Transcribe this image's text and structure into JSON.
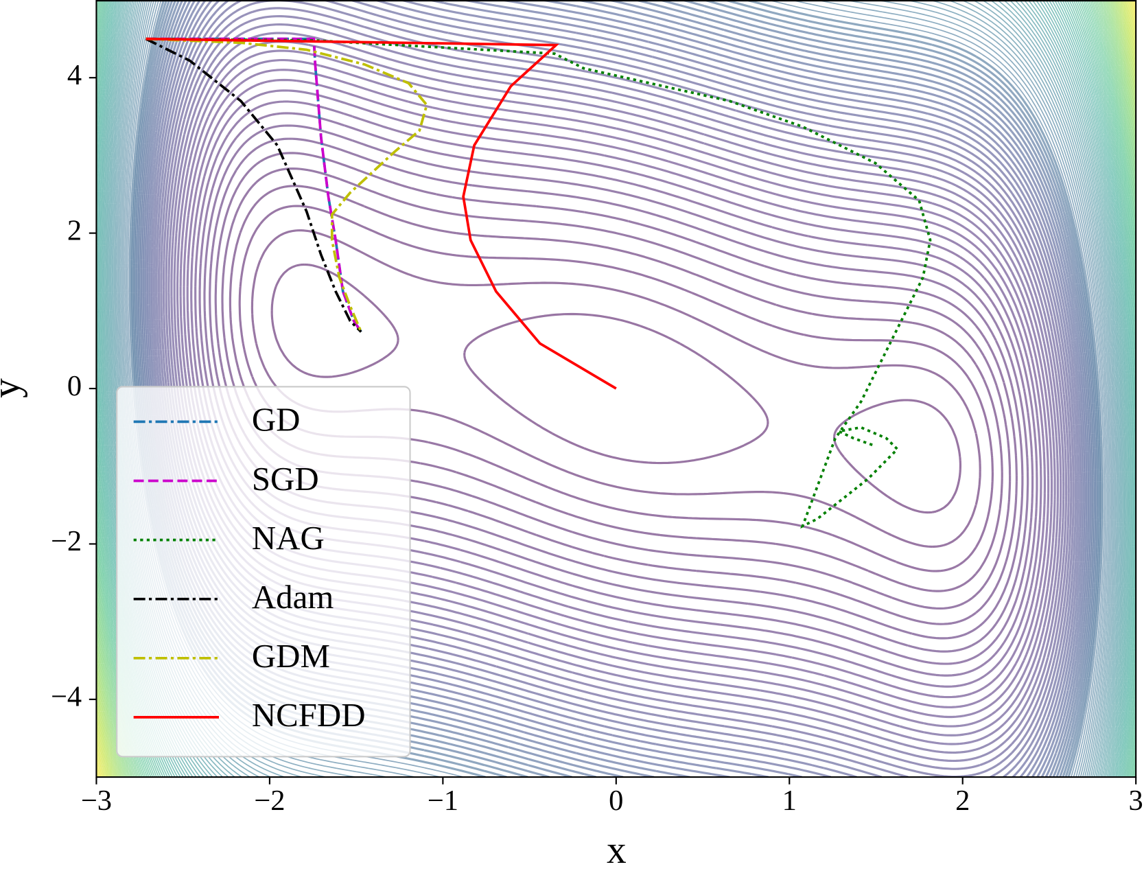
{
  "chart_data": {
    "type": "line",
    "xlabel": "x",
    "ylabel": "y",
    "xlim": [
      -3,
      3
    ],
    "ylim": [
      -5,
      5
    ],
    "xticks": [
      {
        "value": -3,
        "label": "−3"
      },
      {
        "value": -2,
        "label": "−2"
      },
      {
        "value": -1,
        "label": "−1"
      },
      0,
      1,
      2,
      3
    ],
    "yticks": [
      {
        "value": -4,
        "label": "−4"
      },
      {
        "value": -2,
        "label": "−2"
      },
      0,
      2,
      4
    ],
    "legend": "lower left",
    "series": [
      {
        "name": "GD",
        "color": "#1f77b4",
        "linestyle": "dashdot",
        "x": [
          -2.714,
          -1.745,
          -1.737,
          -1.703,
          -1.661,
          -1.619,
          -1.577,
          -1.514,
          -1.472
        ],
        "y": [
          4.5,
          4.5,
          4.17,
          3.23,
          2.47,
          1.91,
          1.25,
          0.87,
          0.73
        ]
      },
      {
        "name": "SGD",
        "color": "#cc00cc",
        "linestyle": "dashed",
        "x": [
          -2.714,
          -1.745,
          -1.737,
          -1.703,
          -1.661,
          -1.619,
          -1.577,
          -1.514,
          -1.472
        ],
        "y": [
          4.5,
          4.5,
          4.17,
          3.23,
          2.47,
          1.91,
          1.25,
          0.87,
          0.73
        ]
      },
      {
        "name": "NAG",
        "color": "#008000",
        "linestyle": "dotted",
        "x": [
          -2.714,
          -1.745,
          -0.356,
          -0.187,
          0.655,
          1.076,
          1.497,
          1.749,
          1.813,
          1.771,
          1.623,
          1.413,
          1.265,
          1.076,
          1.16,
          1.455,
          1.623,
          1.56,
          1.413,
          1.286,
          1.371,
          1.497
        ],
        "y": [
          4.5,
          4.48,
          4.31,
          4.12,
          3.7,
          3.37,
          2.9,
          2.42,
          1.91,
          1.43,
          0.77,
          -0.17,
          -0.64,
          -1.77,
          -1.68,
          -1.16,
          -0.78,
          -0.64,
          -0.5,
          -0.55,
          -0.64,
          -0.74
        ]
      },
      {
        "name": "Adam",
        "color": "#000000",
        "linestyle": "dashdot",
        "x": [
          -2.714,
          -2.461,
          -2.166,
          -1.956,
          -1.787,
          -1.703,
          -1.619,
          -1.535,
          -1.472
        ],
        "y": [
          4.5,
          4.22,
          3.7,
          3.13,
          2.28,
          1.72,
          1.25,
          0.87,
          0.73
        ]
      },
      {
        "name": "GDM",
        "color": "#bfbf00",
        "linestyle": "dashdot",
        "x": [
          -2.714,
          -2.166,
          -1.787,
          -1.451,
          -1.198,
          -1.093,
          -1.135,
          -1.282,
          -1.535,
          -1.64,
          -1.64,
          -1.598,
          -1.535,
          -1.472
        ],
        "y": [
          4.5,
          4.45,
          4.36,
          4.17,
          3.93,
          3.65,
          3.32,
          3.04,
          2.52,
          2.24,
          1.91,
          1.43,
          1.06,
          0.73
        ]
      },
      {
        "name": "NCFDD",
        "color": "#ff0000",
        "linestyle": "solid",
        "x": [
          -2.714,
          -0.347,
          -0.608,
          -0.819,
          -0.882,
          -0.84,
          -0.693,
          -0.44,
          0
        ],
        "y": [
          4.5,
          4.42,
          3.89,
          3.13,
          2.47,
          1.91,
          1.25,
          0.58,
          0
        ]
      }
    ]
  }
}
